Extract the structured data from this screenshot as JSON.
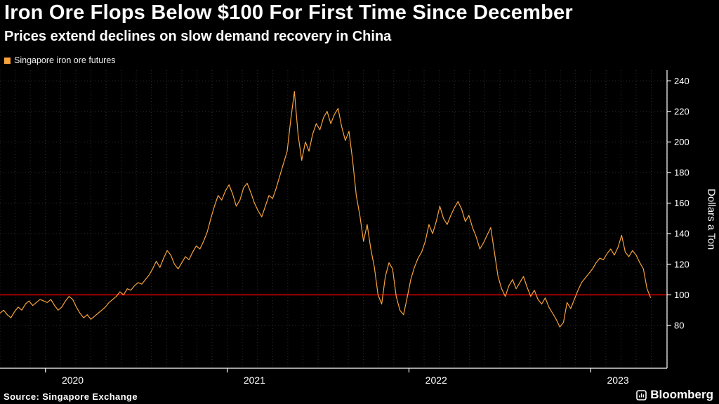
{
  "header": {
    "title": "Iron Ore Flops Below $100 For First Time Since December",
    "subtitle": "Prices extend declines on slow demand recovery in China"
  },
  "legend": {
    "label": "Singapore iron ore futures"
  },
  "footer": {
    "source": "Source: Singapore Exchange",
    "brand": "Bloomberg"
  },
  "colors": {
    "background": "#000000",
    "text": "#ffffff",
    "grid": "#2f2f2f",
    "axis": "#ffffff",
    "series": "#f8a33c",
    "reference": "#e00000"
  },
  "chart_data": {
    "type": "line",
    "title": "Iron Ore Flops Below $100 For First Time Since December",
    "subtitle": "Prices extend declines on slow demand recovery in China",
    "xlabel": "",
    "ylabel": "Dollars a Ton",
    "xlim": [
      2019.75,
      2023.42
    ],
    "ylim": [
      52,
      247
    ],
    "yticks": [
      80,
      100,
      120,
      140,
      160,
      180,
      200,
      220,
      240
    ],
    "xticks": [
      {
        "x": 2020,
        "label": "2020"
      },
      {
        "x": 2021,
        "label": "2021"
      },
      {
        "x": 2022,
        "label": "2022"
      },
      {
        "x": 2023,
        "label": "2023"
      }
    ],
    "grid": "dotted",
    "legend_position": "top-left",
    "reference_line": {
      "y": 100,
      "color": "#e00000"
    },
    "series": [
      {
        "name": "Singapore iron ore futures",
        "color": "#f8a33c",
        "points": [
          [
            2019.75,
            88
          ],
          [
            2019.77,
            90
          ],
          [
            2019.79,
            87
          ],
          [
            2019.81,
            85
          ],
          [
            2019.83,
            89
          ],
          [
            2019.85,
            92
          ],
          [
            2019.87,
            90
          ],
          [
            2019.89,
            94
          ],
          [
            2019.91,
            96
          ],
          [
            2019.93,
            93
          ],
          [
            2019.95,
            95
          ],
          [
            2019.97,
            97
          ],
          [
            2019.99,
            96
          ],
          [
            2020.01,
            95
          ],
          [
            2020.03,
            97
          ],
          [
            2020.05,
            93
          ],
          [
            2020.07,
            90
          ],
          [
            2020.09,
            92
          ],
          [
            2020.11,
            96
          ],
          [
            2020.13,
            99
          ],
          [
            2020.15,
            97
          ],
          [
            2020.17,
            92
          ],
          [
            2020.19,
            88
          ],
          [
            2020.21,
            85
          ],
          [
            2020.23,
            87
          ],
          [
            2020.25,
            84
          ],
          [
            2020.27,
            86
          ],
          [
            2020.29,
            88
          ],
          [
            2020.31,
            90
          ],
          [
            2020.33,
            92
          ],
          [
            2020.35,
            95
          ],
          [
            2020.37,
            97
          ],
          [
            2020.39,
            99
          ],
          [
            2020.41,
            102
          ],
          [
            2020.43,
            100
          ],
          [
            2020.45,
            104
          ],
          [
            2020.47,
            103
          ],
          [
            2020.49,
            106
          ],
          [
            2020.51,
            108
          ],
          [
            2020.53,
            107
          ],
          [
            2020.55,
            110
          ],
          [
            2020.57,
            113
          ],
          [
            2020.59,
            117
          ],
          [
            2020.61,
            122
          ],
          [
            2020.63,
            118
          ],
          [
            2020.65,
            124
          ],
          [
            2020.67,
            129
          ],
          [
            2020.69,
            126
          ],
          [
            2020.71,
            120
          ],
          [
            2020.73,
            117
          ],
          [
            2020.75,
            121
          ],
          [
            2020.77,
            125
          ],
          [
            2020.79,
            123
          ],
          [
            2020.81,
            128
          ],
          [
            2020.83,
            132
          ],
          [
            2020.85,
            130
          ],
          [
            2020.87,
            135
          ],
          [
            2020.89,
            141
          ],
          [
            2020.91,
            150
          ],
          [
            2020.93,
            158
          ],
          [
            2020.95,
            165
          ],
          [
            2020.97,
            162
          ],
          [
            2020.99,
            168
          ],
          [
            2021.01,
            172
          ],
          [
            2021.03,
            166
          ],
          [
            2021.05,
            158
          ],
          [
            2021.07,
            162
          ],
          [
            2021.09,
            170
          ],
          [
            2021.11,
            173
          ],
          [
            2021.13,
            167
          ],
          [
            2021.15,
            160
          ],
          [
            2021.17,
            155
          ],
          [
            2021.19,
            151
          ],
          [
            2021.21,
            158
          ],
          [
            2021.23,
            165
          ],
          [
            2021.25,
            163
          ],
          [
            2021.27,
            170
          ],
          [
            2021.29,
            178
          ],
          [
            2021.31,
            186
          ],
          [
            2021.33,
            194
          ],
          [
            2021.35,
            215
          ],
          [
            2021.37,
            233
          ],
          [
            2021.39,
            205
          ],
          [
            2021.41,
            188
          ],
          [
            2021.43,
            200
          ],
          [
            2021.45,
            194
          ],
          [
            2021.47,
            205
          ],
          [
            2021.49,
            212
          ],
          [
            2021.51,
            208
          ],
          [
            2021.53,
            216
          ],
          [
            2021.55,
            220
          ],
          [
            2021.57,
            212
          ],
          [
            2021.59,
            218
          ],
          [
            2021.61,
            222
          ],
          [
            2021.63,
            210
          ],
          [
            2021.65,
            201
          ],
          [
            2021.67,
            207
          ],
          [
            2021.69,
            188
          ],
          [
            2021.71,
            165
          ],
          [
            2021.73,
            152
          ],
          [
            2021.75,
            135
          ],
          [
            2021.77,
            146
          ],
          [
            2021.79,
            130
          ],
          [
            2021.81,
            118
          ],
          [
            2021.83,
            100
          ],
          [
            2021.85,
            94
          ],
          [
            2021.87,
            112
          ],
          [
            2021.89,
            121
          ],
          [
            2021.91,
            117
          ],
          [
            2021.93,
            99
          ],
          [
            2021.95,
            90
          ],
          [
            2021.97,
            87
          ],
          [
            2021.99,
            98
          ],
          [
            2022.01,
            110
          ],
          [
            2022.03,
            118
          ],
          [
            2022.05,
            124
          ],
          [
            2022.07,
            128
          ],
          [
            2022.09,
            135
          ],
          [
            2022.11,
            146
          ],
          [
            2022.13,
            140
          ],
          [
            2022.15,
            148
          ],
          [
            2022.17,
            158
          ],
          [
            2022.19,
            150
          ],
          [
            2022.21,
            146
          ],
          [
            2022.23,
            152
          ],
          [
            2022.25,
            157
          ],
          [
            2022.27,
            161
          ],
          [
            2022.29,
            156
          ],
          [
            2022.31,
            148
          ],
          [
            2022.33,
            152
          ],
          [
            2022.35,
            144
          ],
          [
            2022.37,
            138
          ],
          [
            2022.39,
            130
          ],
          [
            2022.41,
            134
          ],
          [
            2022.43,
            139
          ],
          [
            2022.45,
            144
          ],
          [
            2022.47,
            128
          ],
          [
            2022.49,
            112
          ],
          [
            2022.51,
            104
          ],
          [
            2022.53,
            99
          ],
          [
            2022.55,
            106
          ],
          [
            2022.57,
            110
          ],
          [
            2022.59,
            104
          ],
          [
            2022.61,
            108
          ],
          [
            2022.63,
            112
          ],
          [
            2022.65,
            105
          ],
          [
            2022.67,
            99
          ],
          [
            2022.69,
            103
          ],
          [
            2022.71,
            97
          ],
          [
            2022.73,
            94
          ],
          [
            2022.75,
            98
          ],
          [
            2022.77,
            92
          ],
          [
            2022.79,
            88
          ],
          [
            2022.81,
            84
          ],
          [
            2022.83,
            79
          ],
          [
            2022.85,
            82
          ],
          [
            2022.87,
            95
          ],
          [
            2022.89,
            91
          ],
          [
            2022.91,
            97
          ],
          [
            2022.93,
            103
          ],
          [
            2022.95,
            108
          ],
          [
            2022.97,
            111
          ],
          [
            2022.99,
            114
          ],
          [
            2023.01,
            117
          ],
          [
            2023.03,
            121
          ],
          [
            2023.05,
            124
          ],
          [
            2023.07,
            123
          ],
          [
            2023.09,
            127
          ],
          [
            2023.11,
            130
          ],
          [
            2023.13,
            126
          ],
          [
            2023.15,
            131
          ],
          [
            2023.17,
            139
          ],
          [
            2023.19,
            128
          ],
          [
            2023.21,
            125
          ],
          [
            2023.23,
            129
          ],
          [
            2023.25,
            126
          ],
          [
            2023.27,
            121
          ],
          [
            2023.29,
            117
          ],
          [
            2023.31,
            104
          ],
          [
            2023.33,
            98
          ]
        ]
      }
    ]
  }
}
